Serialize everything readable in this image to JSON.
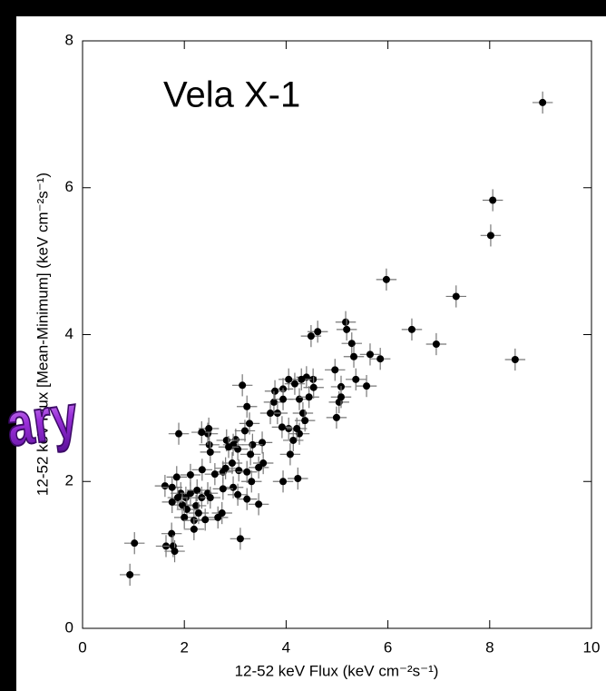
{
  "chart_data": {
    "type": "scatter",
    "annotation": "Vela X-1",
    "x_label": "12-52 keV Flux (keV cm⁻²s⁻¹)",
    "y_label": "12-52 keV Flux [Mean-Minimum] (keV cm⁻²s⁻¹)",
    "xlim": [
      0,
      10
    ],
    "ylim": [
      0,
      8
    ],
    "xticks": [
      0,
      2,
      4,
      6,
      8,
      10
    ],
    "yticks": [
      0,
      2,
      4,
      6,
      8
    ],
    "color": "#000000",
    "xerr": 0.2,
    "yerr": 0.15,
    "x": [
      9.04,
      8.06,
      8.02,
      5.97,
      7.34,
      6.47,
      6.95,
      8.5,
      5.85,
      5.65,
      5.58,
      5.17,
      5.19,
      5.29,
      4.62,
      4.49,
      5.33,
      5.37,
      4.96,
      5.08,
      5.04,
      4.99,
      5.08,
      4.4,
      4.53,
      4.3,
      4.05,
      4.17,
      3.94,
      3.78,
      3.76,
      3.83,
      3.69,
      3.94,
      4.26,
      4.33,
      4.45,
      4.54,
      4.37,
      4.26,
      4.14,
      4.05,
      4.21,
      3.92,
      4.08,
      4.23,
      3.94,
      3.53,
      3.34,
      3.3,
      3.55,
      3.46,
      3.14,
      3.23,
      3.28,
      3.19,
      3.01,
      3.05,
      2.96,
      2.83,
      2.87,
      2.94,
      3.07,
      3.23,
      3.32,
      3.46,
      3.23,
      3.05,
      2.96,
      2.76,
      2.76,
      2.81,
      2.6,
      2.49,
      2.46,
      2.48,
      2.34,
      2.51,
      2.35,
      2.12,
      1.89,
      1.62,
      1.76,
      1.85,
      1.93,
      2.03,
      2.12,
      2.25,
      2.34,
      2.46,
      2.51,
      2.23,
      2.05,
      1.96,
      1.87,
      1.76,
      2.0,
      2.19,
      2.28,
      2.19,
      2.41,
      2.66,
      2.74,
      3.1,
      1.75,
      1.64,
      1.78,
      1.81,
      1.02,
      0.93
    ],
    "y": [
      7.16,
      5.83,
      5.35,
      4.75,
      4.52,
      4.07,
      3.87,
      3.66,
      3.67,
      3.73,
      3.3,
      4.17,
      4.07,
      3.88,
      4.04,
      3.98,
      3.7,
      3.39,
      3.52,
      3.29,
      3.08,
      2.87,
      3.15,
      3.42,
      3.39,
      3.39,
      3.39,
      3.33,
      3.26,
      3.23,
      3.08,
      2.93,
      2.93,
      3.12,
      3.12,
      2.93,
      3.15,
      3.28,
      2.83,
      2.65,
      2.56,
      2.72,
      2.72,
      2.74,
      2.37,
      2.04,
      2.0,
      2.53,
      2.5,
      2.37,
      2.25,
      2.19,
      3.31,
      3.02,
      2.79,
      2.69,
      2.57,
      2.44,
      2.5,
      2.56,
      2.47,
      2.25,
      2.15,
      2.13,
      2.0,
      1.69,
      1.76,
      1.82,
      1.92,
      1.9,
      2.13,
      2.18,
      2.1,
      2.5,
      2.65,
      2.72,
      2.67,
      2.4,
      2.16,
      2.09,
      2.65,
      1.94,
      1.92,
      2.06,
      1.84,
      1.78,
      1.84,
      1.88,
      1.78,
      1.84,
      1.78,
      1.67,
      1.62,
      1.68,
      1.78,
      1.72,
      1.51,
      1.47,
      1.57,
      1.35,
      1.48,
      1.51,
      1.57,
      1.22,
      1.29,
      1.12,
      1.12,
      1.05,
      1.16,
      0.73
    ]
  },
  "overlay_text": "ary"
}
